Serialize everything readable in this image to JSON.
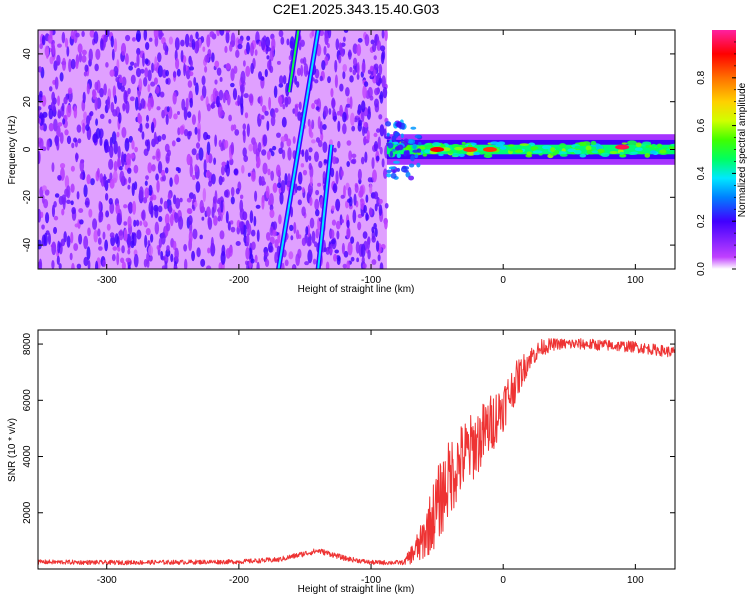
{
  "title": "C2E1.2025.343.15.40.G03",
  "chart_data": [
    {
      "type": "heatmap",
      "xlabel": "Height of straight line (km)",
      "ylabel": "Frequency (Hz)",
      "xlim": [
        -352,
        130
      ],
      "ylim": [
        -50,
        50
      ],
      "xticks": [
        -300,
        -200,
        -100,
        0,
        100
      ],
      "xtick_labels": [
        "-300",
        "-200",
        "-100",
        "0",
        "100"
      ],
      "yticks": [
        -40,
        -20,
        0,
        20,
        40
      ],
      "ytick_labels": [
        "-40",
        "-20",
        "0",
        "20",
        "40"
      ],
      "colorbar": {
        "label": "Normalized spectral amplitude",
        "range": [
          0,
          1
        ],
        "ticks": [
          0,
          0.2,
          0.4,
          0.6,
          0.8
        ],
        "tick_labels": [
          "0.0",
          "0.2",
          "0.4",
          "0.6",
          "0.8"
        ]
      },
      "regions": [
        {
          "name": "noise",
          "x_range": [
            -352,
            -88
          ],
          "level": 0.15
        },
        {
          "name": "carrier",
          "x_range": [
            -88,
            130
          ],
          "freq_center": 0,
          "freq_halfwidth": 4,
          "level": 0.45
        }
      ],
      "streaks": [
        {
          "from": [
            -140,
            50
          ],
          "to": [
            -170,
            -50
          ],
          "level": 0.3
        },
        {
          "from": [
            -155,
            50
          ],
          "to": [
            -162,
            24
          ],
          "level": 0.4
        },
        {
          "from": [
            -130,
            2
          ],
          "to": [
            -140,
            -50
          ],
          "level": 0.3
        }
      ],
      "hot_spots": [
        {
          "x": 90,
          "y": 1,
          "level": 0.95
        },
        {
          "x": -50,
          "y": 0,
          "level": 0.9
        },
        {
          "x": -25,
          "y": 0,
          "level": 0.85
        },
        {
          "x": -10,
          "y": 0,
          "level": 0.85
        }
      ]
    },
    {
      "type": "line",
      "xlabel": "Height of straight line (km)",
      "ylabel": "SNR (10 * v/v)",
      "xlim": [
        -352,
        130
      ],
      "ylim": [
        0,
        8500
      ],
      "xticks": [
        -300,
        -200,
        -100,
        0,
        100
      ],
      "xtick_labels": [
        "-300",
        "-200",
        "-100",
        "0",
        "100"
      ],
      "yticks": [
        2000,
        4000,
        6000,
        8000
      ],
      "ytick_labels": [
        "2000",
        "4000",
        "6000",
        "8000"
      ],
      "series": [
        {
          "name": "SNR",
          "color": "#ee3333",
          "x": [
            -352,
            -300,
            -250,
            -200,
            -170,
            -150,
            -140,
            -130,
            -120,
            -100,
            -75,
            -62,
            -50,
            -40,
            -30,
            -20,
            -10,
            0,
            10,
            20,
            30,
            40,
            60,
            80,
            100,
            115,
            130
          ],
          "y": [
            250,
            230,
            240,
            260,
            330,
            550,
            650,
            530,
            380,
            230,
            230,
            900,
            2200,
            3300,
            4000,
            4500,
            5100,
            5800,
            6700,
            7500,
            7900,
            8000,
            8000,
            7950,
            7900,
            7800,
            7700
          ],
          "noise_amplitude": [
            80,
            80,
            80,
            80,
            90,
            100,
            100,
            100,
            90,
            80,
            80,
            700,
            1400,
            1400,
            1300,
            1200,
            1100,
            900,
            700,
            400,
            300,
            200,
            200,
            200,
            200,
            200,
            200
          ]
        }
      ]
    }
  ]
}
